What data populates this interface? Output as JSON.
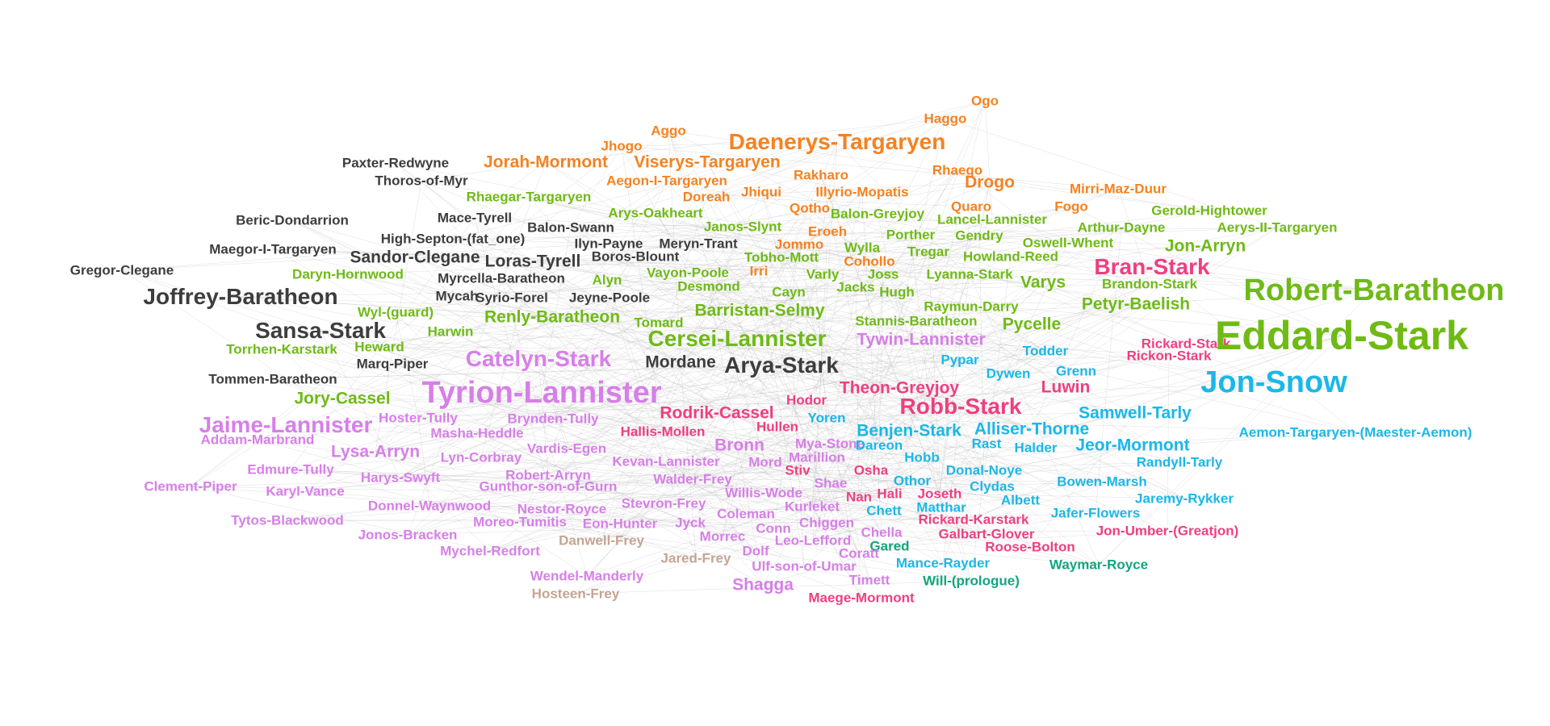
{
  "palette": {
    "orange": "#f58220",
    "green": "#6fba16",
    "dark": "#3d3d3d",
    "pink": "#ee3f80",
    "blue": "#1bb7e8",
    "violet": "#d77fe8",
    "tan": "#c4a494",
    "teal": "#12a57f",
    "edge": "#b8b8b8"
  },
  "nodes": [
    {
      "name": "Ogo",
      "color": "orange",
      "size": 1
    },
    {
      "name": "Haggo",
      "color": "orange",
      "size": 1
    },
    {
      "name": "Aggo",
      "color": "orange",
      "size": 1
    },
    {
      "name": "Daenerys-Targaryen",
      "color": "orange",
      "size": 3
    },
    {
      "name": "Jhogo",
      "color": "orange",
      "size": 1
    },
    {
      "name": "Paxter-Redwyne",
      "color": "dark",
      "size": 1
    },
    {
      "name": "Jorah-Mormont",
      "color": "orange",
      "size": 2
    },
    {
      "name": "Viserys-Targaryen",
      "color": "orange",
      "size": 2
    },
    {
      "name": "Rhaego",
      "color": "orange",
      "size": 1
    },
    {
      "name": "Thoros-of-Myr",
      "color": "dark",
      "size": 1
    },
    {
      "name": "Aegon-I-Targaryen",
      "color": "orange",
      "size": 1
    },
    {
      "name": "Rakharo",
      "color": "orange",
      "size": 1
    },
    {
      "name": "Drogo",
      "color": "orange",
      "size": 2
    },
    {
      "name": "Mirri-Maz-Duur",
      "color": "orange",
      "size": 1
    },
    {
      "name": "Jhiqui",
      "color": "orange",
      "size": 1
    },
    {
      "name": "Illyrio-Mopatis",
      "color": "orange",
      "size": 1
    },
    {
      "name": "Rhaegar-Targaryen",
      "color": "green",
      "size": 1
    },
    {
      "name": "Doreah",
      "color": "orange",
      "size": 1
    },
    {
      "name": "Quaro",
      "color": "orange",
      "size": 1
    },
    {
      "name": "Fogo",
      "color": "orange",
      "size": 1
    },
    {
      "name": "Gerold-Hightower",
      "color": "green",
      "size": 1
    },
    {
      "name": "Qotho",
      "color": "orange",
      "size": 1
    },
    {
      "name": "Balon-Greyjoy",
      "color": "green",
      "size": 1
    },
    {
      "name": "Arys-Oakheart",
      "color": "green",
      "size": 1
    },
    {
      "name": "Lancel-Lannister",
      "color": "green",
      "size": 1
    },
    {
      "name": "Beric-Dondarrion",
      "color": "dark",
      "size": 1
    },
    {
      "name": "Mace-Tyrell",
      "color": "dark",
      "size": 1
    },
    {
      "name": "Balon-Swann",
      "color": "dark",
      "size": 1
    },
    {
      "name": "Janos-Slynt",
      "color": "green",
      "size": 1
    },
    {
      "name": "Eroeh",
      "color": "orange",
      "size": 1
    },
    {
      "name": "Arthur-Dayne",
      "color": "green",
      "size": 1
    },
    {
      "name": "Aerys-II-Targaryen",
      "color": "green",
      "size": 1
    },
    {
      "name": "High-Septon-(fat_one)",
      "color": "dark",
      "size": 1
    },
    {
      "name": "Ilyn-Payne",
      "color": "dark",
      "size": 1
    },
    {
      "name": "Meryn-Trant",
      "color": "dark",
      "size": 1
    },
    {
      "name": "Porther",
      "color": "green",
      "size": 1
    },
    {
      "name": "Gendry",
      "color": "green",
      "size": 1
    },
    {
      "name": "Jommo",
      "color": "orange",
      "size": 1
    },
    {
      "name": "Wylla",
      "color": "green",
      "size": 1
    },
    {
      "name": "Oswell-Whent",
      "color": "green",
      "size": 1
    },
    {
      "name": "Jon-Arryn",
      "color": "green",
      "size": 2
    },
    {
      "name": "Maegor-I-Targaryen",
      "color": "dark",
      "size": 1
    },
    {
      "name": "Sandor-Clegane",
      "color": "dark",
      "size": 2
    },
    {
      "name": "Loras-Tyrell",
      "color": "dark",
      "size": 2
    },
    {
      "name": "Boros-Blount",
      "color": "dark",
      "size": 1
    },
    {
      "name": "Tobho-Mott",
      "color": "green",
      "size": 1
    },
    {
      "name": "Cohollo",
      "color": "orange",
      "size": 1
    },
    {
      "name": "Tregar",
      "color": "green",
      "size": 1
    },
    {
      "name": "Howland-Reed",
      "color": "green",
      "size": 1
    },
    {
      "name": "Gregor-Clegane",
      "color": "dark",
      "size": 1
    },
    {
      "name": "Daryn-Hornwood",
      "color": "green",
      "size": 1
    },
    {
      "name": "Myrcella-Baratheon",
      "color": "dark",
      "size": 1
    },
    {
      "name": "Alyn",
      "color": "green",
      "size": 1
    },
    {
      "name": "Vayon-Poole",
      "color": "green",
      "size": 1
    },
    {
      "name": "Irri",
      "color": "orange",
      "size": 1
    },
    {
      "name": "Varly",
      "color": "green",
      "size": 1
    },
    {
      "name": "Joss",
      "color": "green",
      "size": 1
    },
    {
      "name": "Lyanna-Stark",
      "color": "green",
      "size": 1
    },
    {
      "name": "Bran-Stark",
      "color": "pink",
      "size": 3
    },
    {
      "name": "Robert-Baratheon",
      "color": "green",
      "size": 4
    },
    {
      "name": "Desmond",
      "color": "green",
      "size": 1
    },
    {
      "name": "Jacks",
      "color": "green",
      "size": 1
    },
    {
      "name": "Hugh",
      "color": "green",
      "size": 1
    },
    {
      "name": "Varys",
      "color": "green",
      "size": 2
    },
    {
      "name": "Brandon-Stark",
      "color": "green",
      "size": 1
    },
    {
      "name": "Joffrey-Baratheon",
      "color": "dark",
      "size": 3
    },
    {
      "name": "Mycah",
      "color": "dark",
      "size": 1
    },
    {
      "name": "Syrio-Forel",
      "color": "dark",
      "size": 1
    },
    {
      "name": "Jeyne-Poole",
      "color": "dark",
      "size": 1
    },
    {
      "name": "Cayn",
      "color": "green",
      "size": 1
    },
    {
      "name": "Raymun-Darry",
      "color": "green",
      "size": 1
    },
    {
      "name": "Petyr-Baelish",
      "color": "green",
      "size": 2
    },
    {
      "name": "Wyl-(guard)",
      "color": "green",
      "size": 1
    },
    {
      "name": "Renly-Baratheon",
      "color": "green",
      "size": 2
    },
    {
      "name": "Barristan-Selmy",
      "color": "green",
      "size": 2
    },
    {
      "name": "Tomard",
      "color": "green",
      "size": 1
    },
    {
      "name": "Stannis-Baratheon",
      "color": "green",
      "size": 1
    },
    {
      "name": "Pycelle",
      "color": "green",
      "size": 2
    },
    {
      "name": "Sansa-Stark",
      "color": "dark",
      "size": 3
    },
    {
      "name": "Harwin",
      "color": "green",
      "size": 1
    },
    {
      "name": "Rickard-Stark",
      "color": "pink",
      "size": 1
    },
    {
      "name": "Eddard-Stark",
      "color": "green",
      "size": 5
    },
    {
      "name": "Cersei-Lannister",
      "color": "green",
      "size": 3
    },
    {
      "name": "Tywin-Lannister",
      "color": "violet",
      "size": 2
    },
    {
      "name": "Torrhen-Karstark",
      "color": "green",
      "size": 1
    },
    {
      "name": "Heward",
      "color": "green",
      "size": 1
    },
    {
      "name": "Todder",
      "color": "blue",
      "size": 1
    },
    {
      "name": "Rickon-Stark",
      "color": "pink",
      "size": 1
    },
    {
      "name": "Catelyn-Stark",
      "color": "violet",
      "size": 3
    },
    {
      "name": "Marq-Piper",
      "color": "dark",
      "size": 1
    },
    {
      "name": "Mordane",
      "color": "dark",
      "size": 2
    },
    {
      "name": "Arya-Stark",
      "color": "dark",
      "size": 3
    },
    {
      "name": "Pypar",
      "color": "blue",
      "size": 1
    },
    {
      "name": "Dywen",
      "color": "blue",
      "size": 1
    },
    {
      "name": "Grenn",
      "color": "blue",
      "size": 1
    },
    {
      "name": "Tommen-Baratheon",
      "color": "dark",
      "size": 1
    },
    {
      "name": "Jon-Snow",
      "color": "blue",
      "size": 4
    },
    {
      "name": "Theon-Greyjoy",
      "color": "pink",
      "size": 2
    },
    {
      "name": "Luwin",
      "color": "pink",
      "size": 2
    },
    {
      "name": "Tyrion-Lannister",
      "color": "violet",
      "size": 4
    },
    {
      "name": "Jory-Cassel",
      "color": "green",
      "size": 2
    },
    {
      "name": "Hodor",
      "color": "pink",
      "size": 1
    },
    {
      "name": "Robb-Stark",
      "color": "pink",
      "size": 3
    },
    {
      "name": "Rodrik-Cassel",
      "color": "pink",
      "size": 2
    },
    {
      "name": "Samwell-Tarly",
      "color": "blue",
      "size": 2
    },
    {
      "name": "Hoster-Tully",
      "color": "violet",
      "size": 1
    },
    {
      "name": "Brynden-Tully",
      "color": "violet",
      "size": 1
    },
    {
      "name": "Yoren",
      "color": "blue",
      "size": 1
    },
    {
      "name": "Jaime-Lannister",
      "color": "violet",
      "size": 3
    },
    {
      "name": "Hullen",
      "color": "pink",
      "size": 1
    },
    {
      "name": "Benjen-Stark",
      "color": "blue",
      "size": 2
    },
    {
      "name": "Alliser-Thorne",
      "color": "blue",
      "size": 2
    },
    {
      "name": "Masha-Heddle",
      "color": "violet",
      "size": 1
    },
    {
      "name": "Hallis-Mollen",
      "color": "pink",
      "size": 1
    },
    {
      "name": "Aemon-Targaryen-(Maester-Aemon)",
      "color": "blue",
      "size": 1
    },
    {
      "name": "Addam-Marbrand",
      "color": "violet",
      "size": 1
    },
    {
      "name": "Rast",
      "color": "blue",
      "size": 1
    },
    {
      "name": "Mya-Stone",
      "color": "violet",
      "size": 1
    },
    {
      "name": "Bronn",
      "color": "violet",
      "size": 2
    },
    {
      "name": "Dareon",
      "color": "blue",
      "size": 1
    },
    {
      "name": "Halder",
      "color": "blue",
      "size": 1
    },
    {
      "name": "Jeor-Mormont",
      "color": "blue",
      "size": 2
    },
    {
      "name": "Vardis-Egen",
      "color": "violet",
      "size": 1
    },
    {
      "name": "Lysa-Arryn",
      "color": "violet",
      "size": 2
    },
    {
      "name": "Marillion",
      "color": "violet",
      "size": 1
    },
    {
      "name": "Lyn-Corbray",
      "color": "violet",
      "size": 1
    },
    {
      "name": "Kevan-Lannister",
      "color": "violet",
      "size": 1
    },
    {
      "name": "Mord",
      "color": "violet",
      "size": 1
    },
    {
      "name": "Hobb",
      "color": "blue",
      "size": 1
    },
    {
      "name": "Randyll-Tarly",
      "color": "blue",
      "size": 1
    },
    {
      "name": "Edmure-Tully",
      "color": "violet",
      "size": 1
    },
    {
      "name": "Stiv",
      "color": "pink",
      "size": 1
    },
    {
      "name": "Osha",
      "color": "pink",
      "size": 1
    },
    {
      "name": "Donal-Noye",
      "color": "blue",
      "size": 1
    },
    {
      "name": "Harys-Swyft",
      "color": "violet",
      "size": 1
    },
    {
      "name": "Robert-Arryn",
      "color": "violet",
      "size": 1
    },
    {
      "name": "Walder-Frey",
      "color": "violet",
      "size": 1
    },
    {
      "name": "Othor",
      "color": "blue",
      "size": 1
    },
    {
      "name": "Clement-Piper",
      "color": "violet",
      "size": 1
    },
    {
      "name": "Gunthor-son-of-Gurn",
      "color": "violet",
      "size": 1
    },
    {
      "name": "Shae",
      "color": "violet",
      "size": 1
    },
    {
      "name": "Clydas",
      "color": "blue",
      "size": 1
    },
    {
      "name": "Bowen-Marsh",
      "color": "blue",
      "size": 1
    },
    {
      "name": "Karyl-Vance",
      "color": "violet",
      "size": 1
    },
    {
      "name": "Willis-Wode",
      "color": "violet",
      "size": 1
    },
    {
      "name": "Nan",
      "color": "pink",
      "size": 1
    },
    {
      "name": "Hali",
      "color": "pink",
      "size": 1
    },
    {
      "name": "Joseth",
      "color": "pink",
      "size": 1
    },
    {
      "name": "Albett",
      "color": "blue",
      "size": 1
    },
    {
      "name": "Jaremy-Rykker",
      "color": "blue",
      "size": 1
    },
    {
      "name": "Donnel-Waynwood",
      "color": "violet",
      "size": 1
    },
    {
      "name": "Stevron-Frey",
      "color": "violet",
      "size": 1
    },
    {
      "name": "Kurleket",
      "color": "violet",
      "size": 1
    },
    {
      "name": "Nestor-Royce",
      "color": "violet",
      "size": 1
    },
    {
      "name": "Chett",
      "color": "blue",
      "size": 1
    },
    {
      "name": "Matthar",
      "color": "blue",
      "size": 1
    },
    {
      "name": "Jafer-Flowers",
      "color": "blue",
      "size": 1
    },
    {
      "name": "Tytos-Blackwood",
      "color": "violet",
      "size": 1
    },
    {
      "name": "Coleman",
      "color": "violet",
      "size": 1
    },
    {
      "name": "Moreo-Tumitis",
      "color": "violet",
      "size": 1
    },
    {
      "name": "Eon-Hunter",
      "color": "violet",
      "size": 1
    },
    {
      "name": "Jyck",
      "color": "violet",
      "size": 1
    },
    {
      "name": "Chiggen",
      "color": "violet",
      "size": 1
    },
    {
      "name": "Rickard-Karstark",
      "color": "pink",
      "size": 1
    },
    {
      "name": "Conn",
      "color": "violet",
      "size": 1
    },
    {
      "name": "Jonos-Bracken",
      "color": "violet",
      "size": 1
    },
    {
      "name": "Chella",
      "color": "violet",
      "size": 1
    },
    {
      "name": "Galbart-Glover",
      "color": "pink",
      "size": 1
    },
    {
      "name": "Jon-Umber-(Greatjon)",
      "color": "pink",
      "size": 1
    },
    {
      "name": "Morrec",
      "color": "violet",
      "size": 1
    },
    {
      "name": "Danwell-Frey",
      "color": "tan",
      "size": 1
    },
    {
      "name": "Leo-Lefford",
      "color": "violet",
      "size": 1
    },
    {
      "name": "Gared",
      "color": "teal",
      "size": 1
    },
    {
      "name": "Mychel-Redfort",
      "color": "violet",
      "size": 1
    },
    {
      "name": "Dolf",
      "color": "violet",
      "size": 1
    },
    {
      "name": "Roose-Bolton",
      "color": "pink",
      "size": 1
    },
    {
      "name": "Coratt",
      "color": "violet",
      "size": 1
    },
    {
      "name": "Jared-Frey",
      "color": "tan",
      "size": 1
    },
    {
      "name": "Mance-Rayder",
      "color": "blue",
      "size": 1
    },
    {
      "name": "Waymar-Royce",
      "color": "teal",
      "size": 1
    },
    {
      "name": "Ulf-son-of-Umar",
      "color": "violet",
      "size": 1
    },
    {
      "name": "Wendel-Manderly",
      "color": "violet",
      "size": 1
    },
    {
      "name": "Timett",
      "color": "violet",
      "size": 1
    },
    {
      "name": "Will-(prologue)",
      "color": "teal",
      "size": 1
    },
    {
      "name": "Shagga",
      "color": "violet",
      "size": 2
    },
    {
      "name": "Hosteen-Frey",
      "color": "tan",
      "size": 1
    },
    {
      "name": "Maege-Mormont",
      "color": "pink",
      "size": 1
    }
  ]
}
